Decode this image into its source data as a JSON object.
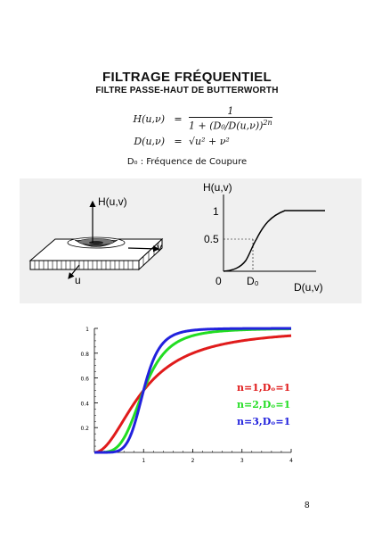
{
  "title": "FILTRAGE FRÉQUENTIEL",
  "subtitle": "FILTRE PASSE-HAUT DE BUTTERWORTH",
  "equations": {
    "h_lhs": "H(u,ν)",
    "h_eq": "=",
    "h_num": "1",
    "h_den_main": "1 + (D₀/D(u,ν))",
    "h_den_exp": "2n",
    "d_lhs": "D(u,ν)",
    "d_eq": "=",
    "d_rhs": "√u² + ν²"
  },
  "cutoff_note": "D₀ : Fréquence de Coupure",
  "filter3d": {
    "axis_h": "H(u,v)",
    "axis_v": "v",
    "axis_u": "u"
  },
  "profile_plot": {
    "ylabel": "H(u,v)",
    "xlabel": "D(u,v)",
    "tick_1": "1",
    "tick_05": "0.5",
    "tick_0": "0",
    "tick_d0": "D₀"
  },
  "chart_data": {
    "type": "line",
    "xlim": [
      0,
      4
    ],
    "ylim": [
      0,
      1
    ],
    "x_ticks": [
      "1",
      "2",
      "3",
      "4"
    ],
    "y_ticks": [
      "0.2",
      "0.4",
      "0.6",
      "0.8",
      "1"
    ],
    "grid": false,
    "legend": "right",
    "series": [
      {
        "name": "n=1,Dₒ=1",
        "n": 1,
        "color": "#e01b1b",
        "points": [
          [
            0,
            0
          ],
          [
            0.25,
            0.06
          ],
          [
            0.5,
            0.2
          ],
          [
            0.75,
            0.36
          ],
          [
            1,
            0.5
          ],
          [
            1.5,
            0.69
          ],
          [
            2,
            0.8
          ],
          [
            3,
            0.9
          ],
          [
            4,
            0.94
          ]
        ]
      },
      {
        "name": "n=2,Dₒ=1",
        "n": 2,
        "color": "#22dd22",
        "points": [
          [
            0,
            0
          ],
          [
            0.25,
            0.004
          ],
          [
            0.5,
            0.06
          ],
          [
            0.75,
            0.24
          ],
          [
            1,
            0.5
          ],
          [
            1.5,
            0.84
          ],
          [
            2,
            0.94
          ],
          [
            3,
            0.99
          ],
          [
            4,
            1.0
          ]
        ]
      },
      {
        "name": "n=3,Dₒ=1",
        "n": 3,
        "color": "#2222dd",
        "points": [
          [
            0,
            0
          ],
          [
            0.25,
            0.0
          ],
          [
            0.5,
            0.015
          ],
          [
            0.75,
            0.15
          ],
          [
            1,
            0.5
          ],
          [
            1.5,
            0.92
          ],
          [
            2,
            0.98
          ],
          [
            3,
            1.0
          ],
          [
            4,
            1.0
          ]
        ]
      }
    ]
  },
  "page_number": "8"
}
